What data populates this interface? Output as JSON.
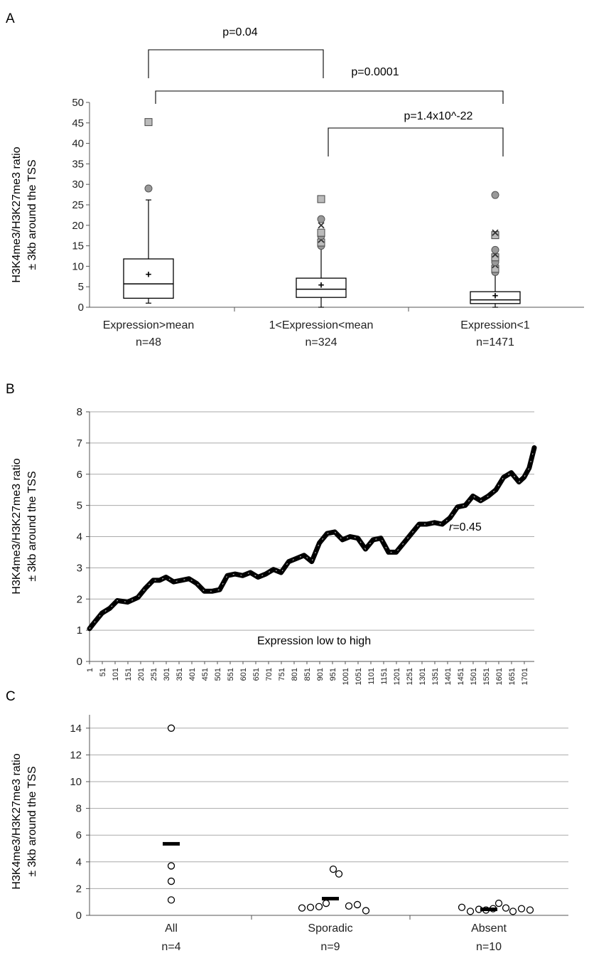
{
  "chart_data": [
    {
      "panel": "A",
      "type": "box",
      "ylabel_line1": "H3K4me3/H3K27me3 ratio",
      "ylabel_line2": "± 3kb around the TSS",
      "ylim": [
        0,
        50
      ],
      "yticks": [
        0,
        5,
        10,
        15,
        20,
        25,
        30,
        35,
        40,
        45,
        50
      ],
      "grid": false,
      "categories": [
        {
          "name": "Expression>mean",
          "n_label": "n=48",
          "min": 1,
          "q1": 2.2,
          "median": 5.7,
          "q3": 11.8,
          "max": 26.2,
          "mean": 8.1,
          "outliers": [
            29,
            45.2
          ]
        },
        {
          "name": "1<Expression<mean",
          "n_label": "n=324",
          "min": 0,
          "q1": 2.4,
          "median": 4.4,
          "q3": 7.1,
          "max": 14.5,
          "mean": 5.5,
          "outliers": [
            15,
            15.8,
            16.5,
            17.4,
            18.2,
            20,
            21.5,
            26.4
          ]
        },
        {
          "name": "Expression<1",
          "n_label": "n=1471",
          "min": 0,
          "q1": 0.9,
          "median": 1.8,
          "q3": 3.8,
          "max": 8,
          "mean": 2.9,
          "outliers": [
            8.6,
            9.4,
            10.3,
            11,
            12.2,
            12.9,
            14,
            17.6,
            18.2,
            27.4
          ]
        }
      ],
      "comparisons": [
        {
          "label": "p=0.04",
          "from": 0,
          "to": 1
        },
        {
          "label": "p=0.0001",
          "from": 0,
          "to": 2
        },
        {
          "label": "p=1.4x10^-22",
          "from": 1,
          "to": 2
        }
      ]
    },
    {
      "panel": "B",
      "type": "line",
      "ylabel_line1": "H3K4me3/H3K27me3 ratio",
      "ylabel_line2": "± 3kb around the TSS",
      "xlabel": "Expression low to high",
      "annotation_prefix": "r",
      "annotation_value": "=0.45",
      "ylim": [
        0,
        8
      ],
      "yticks": [
        0,
        1,
        2,
        3,
        4,
        5,
        6,
        7,
        8
      ],
      "xlim": [
        1,
        1740
      ],
      "xticks": [
        "1",
        "51",
        "101",
        "151",
        "201",
        "251",
        "301",
        "351",
        "401",
        "451",
        "501",
        "551",
        "601",
        "651",
        "701",
        "751",
        "801",
        "851",
        "901",
        "951",
        "1001",
        "1051",
        "1101",
        "1151",
        "1201",
        "1251",
        "1301",
        "1351",
        "1401",
        "1451",
        "1501",
        "1551",
        "1601",
        "1651",
        "1701"
      ],
      "grid": true,
      "x": [
        1,
        20,
        50,
        80,
        110,
        150,
        190,
        220,
        250,
        275,
        300,
        330,
        360,
        390,
        420,
        450,
        480,
        510,
        540,
        570,
        600,
        630,
        660,
        690,
        720,
        750,
        780,
        810,
        840,
        870,
        900,
        930,
        960,
        990,
        1020,
        1050,
        1080,
        1110,
        1140,
        1170,
        1200,
        1230,
        1260,
        1290,
        1320,
        1350,
        1380,
        1410,
        1440,
        1470,
        1500,
        1530,
        1560,
        1590,
        1620,
        1650,
        1680,
        1700,
        1720,
        1740
      ],
      "y": [
        1.05,
        1.25,
        1.55,
        1.7,
        1.95,
        1.9,
        2.05,
        2.35,
        2.6,
        2.6,
        2.7,
        2.55,
        2.6,
        2.65,
        2.5,
        2.25,
        2.25,
        2.3,
        2.75,
        2.8,
        2.75,
        2.85,
        2.7,
        2.8,
        2.95,
        2.85,
        3.2,
        3.3,
        3.4,
        3.2,
        3.8,
        4.1,
        4.15,
        3.9,
        4.0,
        3.95,
        3.6,
        3.9,
        3.95,
        3.5,
        3.5,
        3.8,
        4.1,
        4.4,
        4.4,
        4.45,
        4.4,
        4.6,
        4.95,
        5.0,
        5.3,
        5.15,
        5.3,
        5.5,
        5.9,
        6.05,
        5.75,
        5.9,
        6.2,
        6.85
      ]
    },
    {
      "panel": "C",
      "type": "scatter",
      "ylabel_line1": "H3K4me3/H3K27me3 ratio",
      "ylabel_line2": "± 3kb around the TSS",
      "ylim": [
        0,
        15
      ],
      "yticks": [
        0,
        2,
        4,
        6,
        8,
        10,
        12,
        14
      ],
      "grid": true,
      "groups": [
        {
          "name": "All",
          "n_label": "n=4",
          "mean": 5.35,
          "points": [
            14.0,
            3.7,
            2.55,
            1.15
          ]
        },
        {
          "name": "Sporadic",
          "n_label": "n=9",
          "mean": 1.25,
          "points": [
            3.45,
            3.1,
            0.9,
            0.55,
            0.6,
            0.65,
            0.7,
            0.8,
            0.35
          ]
        },
        {
          "name": "Absent",
          "n_label": "n=10",
          "mean": 0.45,
          "points": [
            0.6,
            0.3,
            0.45,
            0.4,
            0.5,
            0.9,
            0.55,
            0.3,
            0.5,
            0.4
          ]
        }
      ]
    }
  ],
  "panels": {
    "a": "A",
    "b": "B",
    "c": "C"
  }
}
